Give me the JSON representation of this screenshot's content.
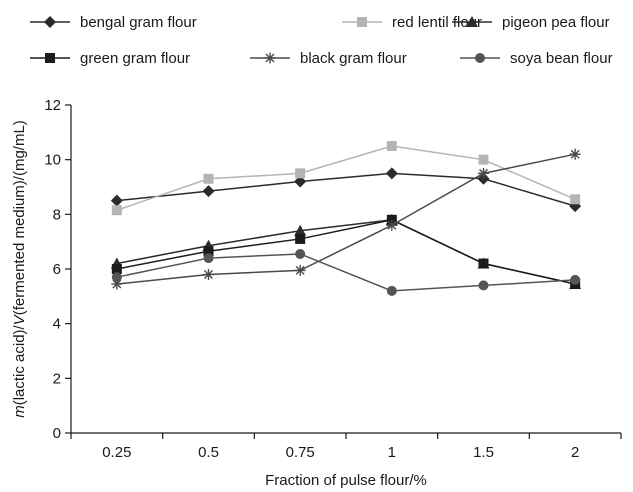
{
  "chart_data": {
    "type": "line",
    "x": [
      "0.25",
      "0.5",
      "0.75",
      "1",
      "1.5",
      "2"
    ],
    "xlabel": "Fraction of pulse flour/%",
    "ylabel_parts": [
      {
        "t": "m",
        "italic": true
      },
      {
        "t": "(lactic acid)/",
        "italic": false
      },
      {
        "t": "V",
        "italic": true
      },
      {
        "t": "(fermented medium)/(mg/mL)",
        "italic": false
      }
    ],
    "ylim": [
      0,
      12
    ],
    "yticks": [
      "0",
      "2",
      "4",
      "6",
      "8",
      "10",
      "12"
    ],
    "grid": false,
    "legend_position": "top",
    "series": [
      {
        "name": "bengal gram flour",
        "color": "#2b2b2b",
        "marker": "diamond",
        "values": [
          8.5,
          8.85,
          9.2,
          9.5,
          9.3,
          8.3
        ]
      },
      {
        "name": "red lentil flour",
        "color": "#b4b4b4",
        "marker": "square",
        "values": [
          8.15,
          9.3,
          9.5,
          10.5,
          10.0,
          8.55
        ]
      },
      {
        "name": "pigeon pea flour",
        "color": "#2b2b2b",
        "marker": "triangle",
        "values": [
          6.2,
          6.85,
          7.4,
          7.8,
          6.2,
          5.45
        ]
      },
      {
        "name": "green gram flour",
        "color": "#1c1c1c",
        "marker": "square",
        "values": [
          6.0,
          6.65,
          7.1,
          7.8,
          6.2,
          5.45
        ]
      },
      {
        "name": "black gram flour",
        "color": "#4a4a4a",
        "marker": "star",
        "values": [
          5.45,
          5.8,
          5.95,
          7.6,
          9.5,
          10.2
        ]
      },
      {
        "name": "soya bean flour",
        "color": "#555555",
        "marker": "circle",
        "values": [
          5.7,
          6.4,
          6.55,
          5.2,
          5.4,
          5.6
        ]
      }
    ]
  }
}
